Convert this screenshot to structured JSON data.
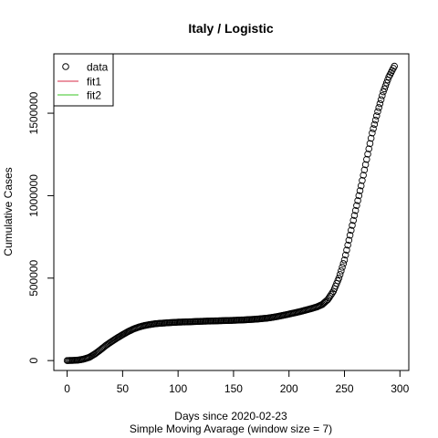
{
  "chart_data": {
    "type": "scatter",
    "title": "Italy / Logistic",
    "xlabel": "Days since 2020-02-23",
    "xlabel2": "Simple Moving Avarage (window size = 7)",
    "ylabel": "Cumulative Cases",
    "xlim": [
      -12,
      308
    ],
    "ylim": [
      -60000,
      1860000
    ],
    "xticks": [
      0,
      50,
      100,
      150,
      200,
      250,
      300
    ],
    "yticks": [
      0,
      500000,
      1000000,
      1500000
    ],
    "grid": false,
    "legend_position": "top-left",
    "legend": [
      {
        "label": "data",
        "marker": "open-circle",
        "color": "#000000"
      },
      {
        "label": "fit1",
        "marker": "line",
        "color": "#DF536B"
      },
      {
        "label": "fit2",
        "marker": "line",
        "color": "#61D04F"
      }
    ],
    "series": [
      {
        "name": "data",
        "x": [
          0,
          5,
          10,
          15,
          20,
          25,
          30,
          35,
          40,
          45,
          50,
          55,
          60,
          65,
          70,
          75,
          80,
          90,
          100,
          110,
          120,
          130,
          140,
          150,
          160,
          170,
          180,
          185,
          190,
          200,
          210,
          215,
          220,
          225,
          230,
          235,
          240,
          245,
          250,
          255,
          260,
          265,
          270,
          275,
          280,
          285,
          290,
          295
        ],
        "values": [
          200,
          1000,
          3000,
          9000,
          20000,
          40000,
          65000,
          92000,
          115000,
          137000,
          157000,
          176000,
          192000,
          204000,
          213000,
          219000,
          224000,
          229000,
          233000,
          235000,
          238000,
          240000,
          242000,
          244000,
          247000,
          251000,
          257000,
          262000,
          268000,
          282000,
          297000,
          306000,
          315000,
          325000,
          340000,
          370000,
          420000,
          500000,
          610000,
          760000,
          910000,
          1060000,
          1220000,
          1380000,
          1510000,
          1630000,
          1720000,
          1785000
        ]
      }
    ]
  }
}
